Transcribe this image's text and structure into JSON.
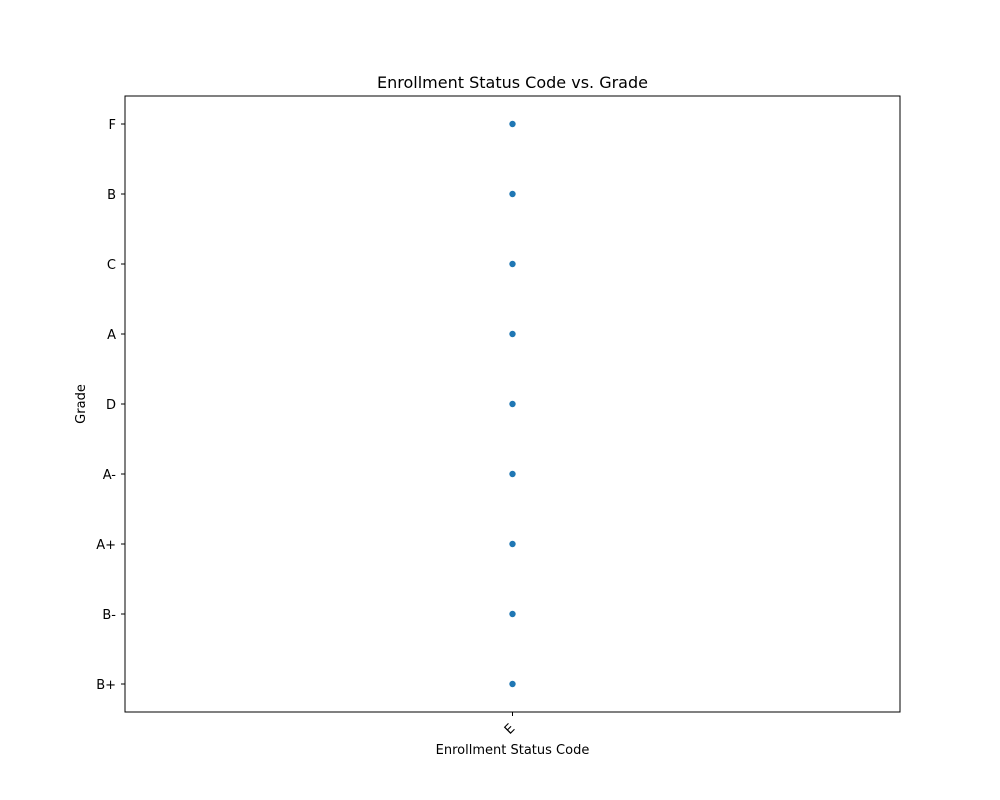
{
  "chart_data": {
    "type": "scatter",
    "title": "Enrollment Status Code vs. Grade",
    "xlabel": "Enrollment Status Code",
    "ylabel": "Grade",
    "x_categories": [
      "E"
    ],
    "y_categories": [
      "B+",
      "B-",
      "A+",
      "A-",
      "D",
      "A",
      "C",
      "B",
      "F"
    ],
    "points": [
      {
        "x": "E",
        "y": "F"
      },
      {
        "x": "E",
        "y": "B"
      },
      {
        "x": "E",
        "y": "C"
      },
      {
        "x": "E",
        "y": "A"
      },
      {
        "x": "E",
        "y": "D"
      },
      {
        "x": "E",
        "y": "A-"
      },
      {
        "x": "E",
        "y": "A+"
      },
      {
        "x": "E",
        "y": "B-"
      },
      {
        "x": "E",
        "y": "B+"
      }
    ],
    "grid": false,
    "legend": "none",
    "point_color": "#1f77b4"
  }
}
